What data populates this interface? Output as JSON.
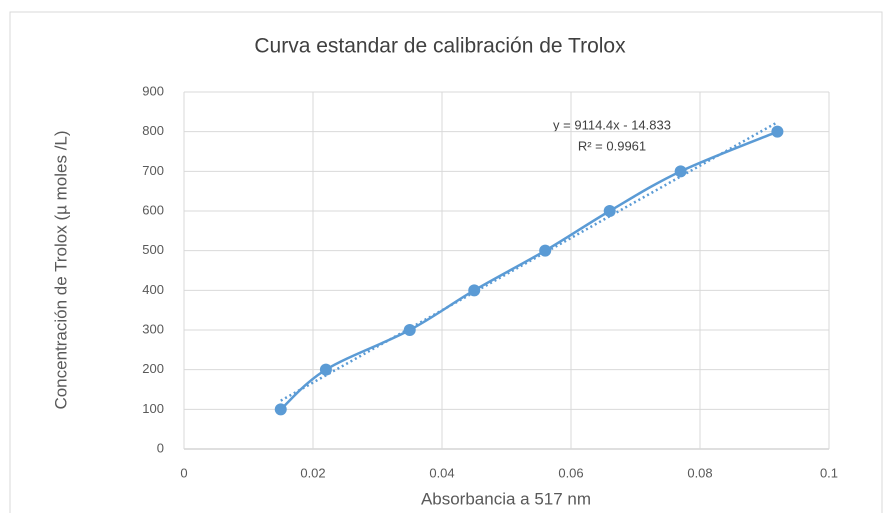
{
  "chart_data": {
    "type": "scatter",
    "title": "Curva estandar de calibración de Trolox",
    "x_label": "Absorbancia a 517 nm",
    "y_label": "Concentración de Trolox (µ moles /L)",
    "series": [
      {
        "name": "Trolox",
        "color": "#5b9bd5",
        "x": [
          0.015,
          0.022,
          0.035,
          0.045,
          0.056,
          0.066,
          0.077,
          0.092
        ],
        "values": [
          100,
          200,
          300,
          400,
          500,
          600,
          700,
          800
        ]
      }
    ],
    "trendline": {
      "equation": "y = 9114.4x - 14.833",
      "r2_label": "R² = 0.9961",
      "slope": 9114.4,
      "intercept": -14.833
    },
    "xlim": [
      0,
      0.1
    ],
    "xticks": [
      0,
      0.02,
      0.04,
      0.06,
      0.08,
      0.1
    ],
    "ylim": [
      0,
      900
    ],
    "yticks": [
      0,
      100,
      200,
      300,
      400,
      500,
      600,
      700,
      800,
      900
    ],
    "grid": true
  }
}
